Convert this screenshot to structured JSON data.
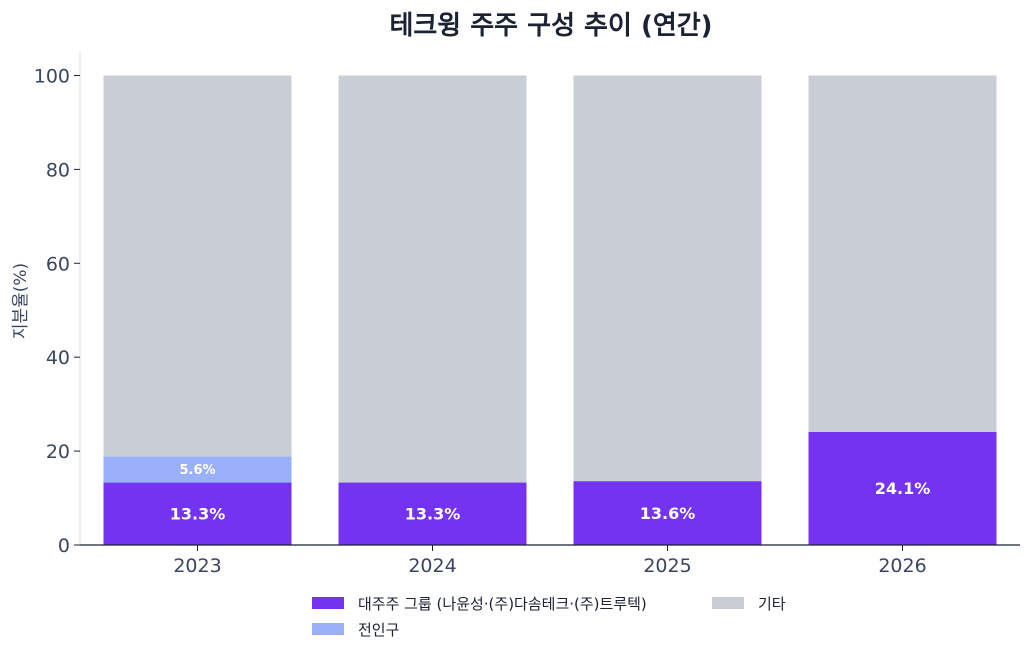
{
  "chart_data": {
    "type": "bar",
    "stacked": true,
    "title": "테크윙 주주 구성 추이 (연간)",
    "xlabel": "",
    "ylabel": "지분율(%)",
    "categories": [
      "2023",
      "2024",
      "2025",
      "2026"
    ],
    "ylim": [
      0,
      105
    ],
    "yticks": [
      0,
      20,
      40,
      60,
      80,
      100
    ],
    "grid": false,
    "legend_position": "bottom",
    "series": [
      {
        "name": "대주주 그룹 (나윤성·(주)다솜테크·(주)트루텍)",
        "values": [
          13.3,
          13.3,
          13.6,
          24.1
        ],
        "labels": [
          "13.3%",
          "13.3%",
          "13.6%",
          "24.1%"
        ],
        "color": "#7433F0"
      },
      {
        "name": "전인구",
        "values": [
          5.6,
          0,
          0,
          0
        ],
        "labels": [
          "5.6%",
          "",
          "",
          ""
        ],
        "color": "#9BB0FA"
      },
      {
        "name": "기타",
        "values": [
          81.1,
          86.7,
          86.4,
          75.9
        ],
        "labels": [
          "",
          "",
          "",
          ""
        ],
        "color": "#C9CDD6"
      }
    ]
  }
}
